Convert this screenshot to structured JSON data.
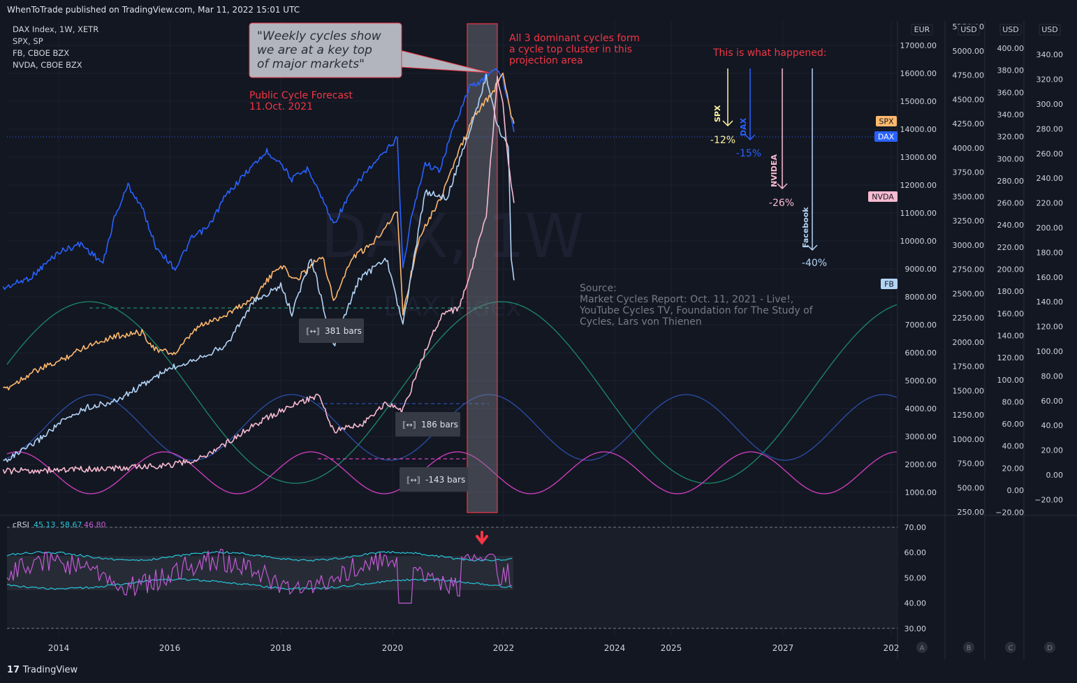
{
  "header": {
    "publish_text": "WhenToTrade published on TradingView.com, Mar 11, 2022 15:01 UTC"
  },
  "footer": {
    "logo_mark": "17",
    "logo_text": "TradingView"
  },
  "colors": {
    "background": "#131722",
    "dax": "#2962ff",
    "spx": "#ffb86c",
    "fb": "#b3d4f5",
    "nvda": "#f8bbd0",
    "cycle_green": "#1b8a6b",
    "cycle_blue": "#2a4fa8",
    "cycle_magenta": "#d63fc3",
    "annotation_red": "#f23645",
    "crsi_line": "#c35ad6",
    "crsi_band": "#26c6da"
  },
  "symbols": [
    {
      "label": "DAX Index, 1W, XETR"
    },
    {
      "label": "SPX, SP"
    },
    {
      "label": "FB, CBOE BZX"
    },
    {
      "label": "NVDA, CBOE BZX"
    }
  ],
  "watermark": {
    "main": "DAX, 1W",
    "sub": "DAX Index"
  },
  "callout": {
    "line1": "\"Weekly cycles show",
    "line2": "we are at a key top",
    "line3": "of major markets\""
  },
  "forecast_note": {
    "line1": "Public Cycle Forecast",
    "line2": "11.Oct. 2021"
  },
  "cluster_note": {
    "line1": "All 3 dominant cycles form",
    "line2": "a cycle top cluster in this",
    "line3": "projection area"
  },
  "happened_title": "This is what happened:",
  "outcomes": [
    {
      "name": "SPX",
      "change": "-12%",
      "color": "#fff59d"
    },
    {
      "name": "DAX",
      "change": "-15%",
      "color": "#2962ff"
    },
    {
      "name": "NVIDEA",
      "change": "-26%",
      "color": "#f8bbd0"
    },
    {
      "name": "Facebook",
      "change": "-40%",
      "color": "#b3d4f5"
    }
  ],
  "source_note": {
    "line1": "Source:",
    "line2": "Market Cycles Report: Oct. 11, 2021 - Live!,",
    "line3": "YouTube Cycles TV, Foundation for The Study of",
    "line4": "Cycles, Lars von Thienen"
  },
  "bar_labels": [
    {
      "text": "381 bars"
    },
    {
      "text": "186 bars"
    },
    {
      "text": "-143 bars"
    }
  ],
  "price_tags": [
    {
      "text": "SPX",
      "bg": "#ffb86c",
      "fg": "#131722"
    },
    {
      "text": "DAX",
      "bg": "#2962ff",
      "fg": "#ffffff"
    },
    {
      "text": "NVDA",
      "bg": "#f8bbd0",
      "fg": "#131722"
    },
    {
      "text": "FB",
      "bg": "#b3d4f5",
      "fg": "#131722"
    }
  ],
  "crsi": {
    "label": "cRSI",
    "values": [
      "45.13",
      "58.67",
      "46.80"
    ],
    "value_colors": [
      "#26c6da",
      "#26c6da",
      "#c35ad6"
    ]
  },
  "chart_data": {
    "type": "line",
    "x_ticks": [
      "2014",
      "2016",
      "2018",
      "2020",
      "2022",
      "2024",
      "2025",
      "2027",
      "202"
    ],
    "axes": [
      {
        "id": "A",
        "unit": "EUR",
        "ticks": [
          "17000.00",
          "16000.00",
          "15000.00",
          "14000.00",
          "13000.00",
          "12000.00",
          "11000.00",
          "10000.00",
          "9000.00",
          "8000.00",
          "7000.00",
          "6000.00",
          "5000.00",
          "4000.00",
          "3000.00",
          "2000.00",
          "1000.00"
        ]
      },
      {
        "id": "B",
        "unit": "USD",
        "ticks": [
          "5250.00",
          "5000.00",
          "4750.00",
          "4500.00",
          "4250.00",
          "4000.00",
          "3750.00",
          "3500.00",
          "3250.00",
          "3000.00",
          "2750.00",
          "2500.00",
          "2250.00",
          "2000.00",
          "1750.00",
          "1500.00",
          "1250.00",
          "1000.00",
          "750.00",
          "500.00",
          "250.00"
        ]
      },
      {
        "id": "C",
        "unit": "USD",
        "ticks": [
          "400.00",
          "380.00",
          "360.00",
          "340.00",
          "320.00",
          "300.00",
          "280.00",
          "260.00",
          "240.00",
          "220.00",
          "200.00",
          "180.00",
          "160.00",
          "140.00",
          "120.00",
          "100.00",
          "80.00",
          "60.00",
          "40.00",
          "20.00",
          "0.00",
          "−20.00"
        ]
      },
      {
        "id": "D",
        "unit": "USD",
        "ticks": [
          "340.00",
          "320.00",
          "300.00",
          "280.00",
          "260.00",
          "240.00",
          "220.00",
          "200.00",
          "180.00",
          "160.00",
          "140.00",
          "120.00",
          "100.00",
          "80.00",
          "60.00",
          "40.00",
          "20.00",
          "0.00",
          "−20.00"
        ]
      }
    ],
    "crsi_ticks": [
      "70.00",
      "60.00",
      "50.00",
      "40.00",
      "30.00"
    ],
    "series": [
      {
        "name": "DAX",
        "axis": "A",
        "color": "#2962ff",
        "points": [
          [
            2013.0,
            8300
          ],
          [
            2013.5,
            8700
          ],
          [
            2014.0,
            9600
          ],
          [
            2014.4,
            9900
          ],
          [
            2014.8,
            9200
          ],
          [
            2015.0,
            10800
          ],
          [
            2015.25,
            12000
          ],
          [
            2015.5,
            11200
          ],
          [
            2015.75,
            9800
          ],
          [
            2016.1,
            9000
          ],
          [
            2016.4,
            10100
          ],
          [
            2016.7,
            10500
          ],
          [
            2017.0,
            11600
          ],
          [
            2017.4,
            12500
          ],
          [
            2017.75,
            13200
          ],
          [
            2018.0,
            12800
          ],
          [
            2018.2,
            12200
          ],
          [
            2018.5,
            12600
          ],
          [
            2018.75,
            11500
          ],
          [
            2018.95,
            10600
          ],
          [
            2019.2,
            11500
          ],
          [
            2019.5,
            12400
          ],
          [
            2019.8,
            13000
          ],
          [
            2020.1,
            13700
          ],
          [
            2020.2,
            9000
          ],
          [
            2020.35,
            10800
          ],
          [
            2020.6,
            12800
          ],
          [
            2020.85,
            12500
          ],
          [
            2021.1,
            14000
          ],
          [
            2021.4,
            15500
          ],
          [
            2021.6,
            15700
          ],
          [
            2021.85,
            16200
          ],
          [
            2022.0,
            15800
          ],
          [
            2022.15,
            14500
          ],
          [
            2022.2,
            13900
          ]
        ]
      },
      {
        "name": "SPX",
        "axis": "B",
        "color": "#ffb86c",
        "points": [
          [
            2013.0,
            1500
          ],
          [
            2013.5,
            1680
          ],
          [
            2014.0,
            1800
          ],
          [
            2014.5,
            1960
          ],
          [
            2015.0,
            2060
          ],
          [
            2015.5,
            2100
          ],
          [
            2015.75,
            1920
          ],
          [
            2016.1,
            1880
          ],
          [
            2016.5,
            2150
          ],
          [
            2017.0,
            2280
          ],
          [
            2017.5,
            2450
          ],
          [
            2018.0,
            2800
          ],
          [
            2018.25,
            2630
          ],
          [
            2018.75,
            2900
          ],
          [
            2018.95,
            2420
          ],
          [
            2019.3,
            2880
          ],
          [
            2019.6,
            2980
          ],
          [
            2020.1,
            3350
          ],
          [
            2020.2,
            2300
          ],
          [
            2020.5,
            3100
          ],
          [
            2020.85,
            3450
          ],
          [
            2021.2,
            3950
          ],
          [
            2021.5,
            4350
          ],
          [
            2021.8,
            4550
          ],
          [
            2022.0,
            4780
          ],
          [
            2022.15,
            4350
          ],
          [
            2022.2,
            4250
          ]
        ]
      },
      {
        "name": "FB",
        "axis": "C",
        "color": "#b3d4f5",
        "points": [
          [
            2013.0,
            26
          ],
          [
            2013.5,
            40
          ],
          [
            2014.0,
            60
          ],
          [
            2014.5,
            75
          ],
          [
            2015.0,
            80
          ],
          [
            2015.5,
            95
          ],
          [
            2016.0,
            110
          ],
          [
            2016.5,
            120
          ],
          [
            2017.0,
            130
          ],
          [
            2017.5,
            170
          ],
          [
            2018.0,
            185
          ],
          [
            2018.2,
            160
          ],
          [
            2018.55,
            210
          ],
          [
            2018.95,
            130
          ],
          [
            2019.4,
            190
          ],
          [
            2019.9,
            210
          ],
          [
            2020.2,
            150
          ],
          [
            2020.6,
            270
          ],
          [
            2021.0,
            265
          ],
          [
            2021.5,
            340
          ],
          [
            2021.7,
            375
          ],
          [
            2021.9,
            330
          ],
          [
            2022.1,
            310
          ],
          [
            2022.15,
            210
          ],
          [
            2022.2,
            190
          ]
        ]
      },
      {
        "name": "NVDA",
        "axis": "D",
        "color": "#f8bbd0",
        "points": [
          [
            2013.0,
            3
          ],
          [
            2014.0,
            4
          ],
          [
            2015.0,
            5
          ],
          [
            2016.0,
            8
          ],
          [
            2016.5,
            12
          ],
          [
            2017.0,
            25
          ],
          [
            2017.5,
            40
          ],
          [
            2018.0,
            52
          ],
          [
            2018.7,
            65
          ],
          [
            2018.95,
            35
          ],
          [
            2019.5,
            42
          ],
          [
            2019.9,
            58
          ],
          [
            2020.2,
            52
          ],
          [
            2020.6,
            100
          ],
          [
            2020.9,
            130
          ],
          [
            2021.2,
            135
          ],
          [
            2021.4,
            160
          ],
          [
            2021.7,
            210
          ],
          [
            2021.9,
            320
          ],
          [
            2022.0,
            300
          ],
          [
            2022.1,
            250
          ],
          [
            2022.2,
            220
          ]
        ]
      }
    ],
    "cycles": [
      {
        "name": "cycle-381",
        "color": "#1b8a6b",
        "period_bars": 381
      },
      {
        "name": "cycle-186",
        "color": "#2a4fa8",
        "period_bars": 186
      },
      {
        "name": "cycle-143",
        "color": "#d63fc3",
        "period_bars": 143
      }
    ]
  }
}
